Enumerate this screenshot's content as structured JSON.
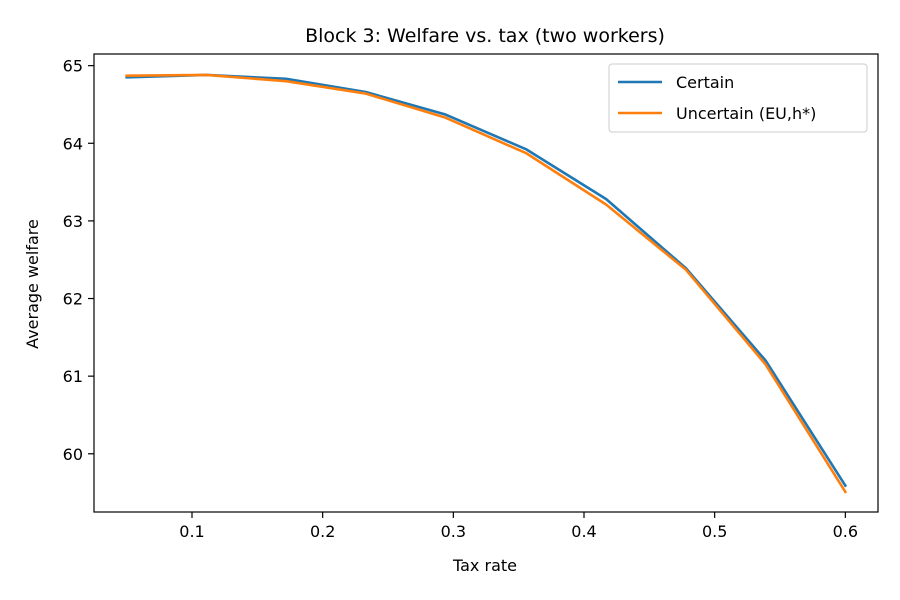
{
  "chart_data": {
    "type": "line",
    "title": "Block 3: Welfare vs. tax (two workers)",
    "xlabel": "Tax rate",
    "ylabel": "Average welfare",
    "xlim": [
      0.025,
      0.625
    ],
    "ylim": [
      59.25,
      65.15
    ],
    "xticks": [
      0.1,
      0.2,
      0.3,
      0.4,
      0.5,
      0.6
    ],
    "xtick_labels": [
      "0.1",
      "0.2",
      "0.3",
      "0.4",
      "0.5",
      "0.6"
    ],
    "yticks": [
      60,
      61,
      62,
      63,
      64,
      65
    ],
    "ytick_labels": [
      "60",
      "61",
      "62",
      "63",
      "64",
      "65"
    ],
    "grid": false,
    "legend_position": "top-right",
    "x": [
      0.05,
      0.111,
      0.172,
      0.233,
      0.294,
      0.356,
      0.417,
      0.478,
      0.539,
      0.6
    ],
    "series": [
      {
        "name": "Certain",
        "color": "#1f77b4",
        "values": [
          64.85,
          64.88,
          64.83,
          64.66,
          64.37,
          63.92,
          63.28,
          62.39,
          61.2,
          59.59
        ]
      },
      {
        "name": "Uncertain (EU,h*)",
        "color": "#ff7f0e",
        "values": [
          64.87,
          64.88,
          64.8,
          64.64,
          64.33,
          63.87,
          63.21,
          62.37,
          61.15,
          59.51
        ]
      }
    ]
  }
}
